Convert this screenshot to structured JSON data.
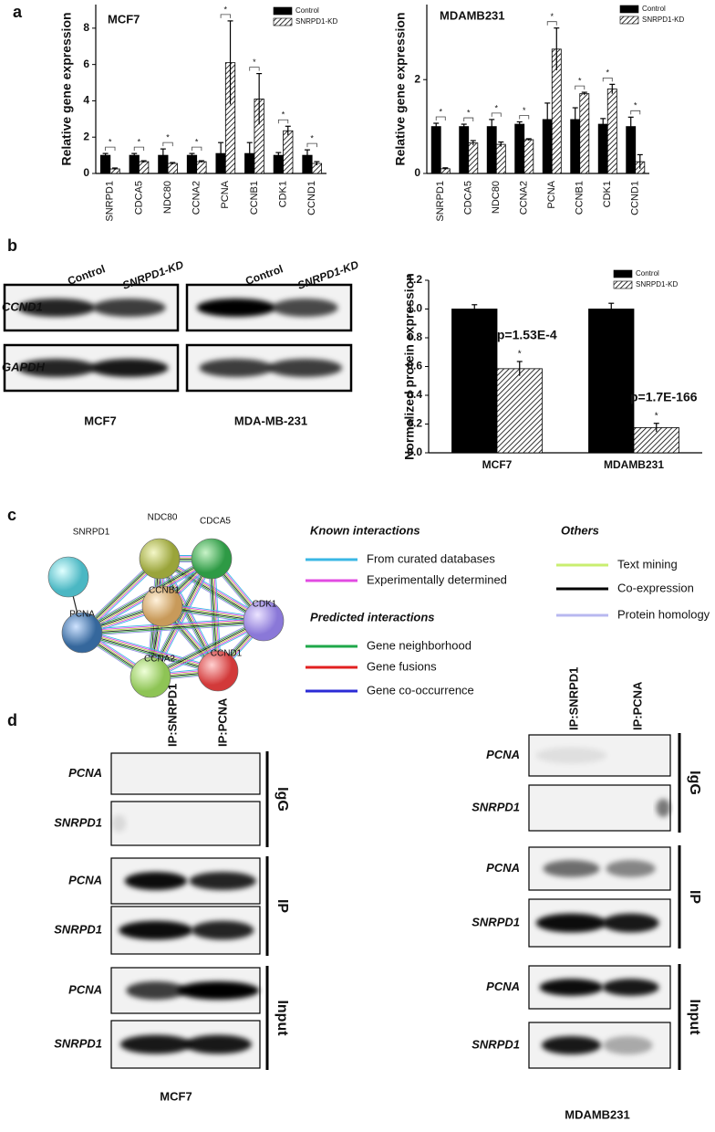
{
  "panel_labels": [
    "a",
    "b",
    "c",
    "d"
  ],
  "chart_data": [
    {
      "type": "bar",
      "title": "MCF7",
      "y_label": "Relative gene expression",
      "categories": [
        "SNRPD1",
        "CDCA5",
        "NDC80",
        "CCNA2",
        "PCNA",
        "CCNB1",
        "CDK1",
        "CCND1"
      ],
      "series": [
        {
          "name": "Control",
          "color": "#000000",
          "values": [
            1,
            1,
            1,
            1,
            1.1,
            1.1,
            1,
            1
          ],
          "errors": [
            0.1,
            0.1,
            0.35,
            0.1,
            0.6,
            0.6,
            0.15,
            0.3
          ]
        },
        {
          "name": "SNRPD1-KD",
          "color": "#000000",
          "fill": "hatch",
          "values": [
            0.25,
            0.65,
            0.55,
            0.65,
            6.1,
            4.1,
            2.35,
            0.55
          ],
          "errors": [
            0.05,
            0.05,
            0.05,
            0.05,
            2.3,
            1.4,
            0.25,
            0.1
          ]
        }
      ],
      "significance": [
        "*",
        "*",
        "*",
        "*",
        "*",
        "*",
        "*",
        "*"
      ],
      "ylim": [
        0,
        9.3
      ],
      "yticks": [
        0,
        2,
        4,
        6,
        8
      ],
      "legend": "upper right"
    },
    {
      "type": "bar",
      "title": "MDAMB231",
      "y_label": "Relative gene expression",
      "categories": [
        "SNRPD1",
        "CDCA5",
        "NDC80",
        "CCNA2",
        "PCNA",
        "CCNB1",
        "CDK1",
        "CCND1"
      ],
      "series": [
        {
          "name": "Control",
          "color": "#000000",
          "values": [
            1,
            1,
            1,
            1.05,
            1.15,
            1.15,
            1.05,
            1
          ],
          "errors": [
            0.07,
            0.05,
            0.15,
            0.05,
            0.35,
            0.25,
            0.12,
            0.2
          ]
        },
        {
          "name": "SNRPD1-KD",
          "color": "#000000",
          "fill": "hatch",
          "values": [
            0.1,
            0.65,
            0.62,
            0.72,
            2.65,
            1.7,
            1.8,
            0.25
          ],
          "errors": [
            0.02,
            0.05,
            0.05,
            0.02,
            0.45,
            0.03,
            0.1,
            0.15
          ]
        }
      ],
      "significance": [
        "*",
        "*",
        "*",
        "*",
        "*",
        "*",
        "*",
        "*"
      ],
      "ylim": [
        0,
        3.6
      ],
      "yticks": [
        0,
        2
      ],
      "legend": "upper right"
    },
    {
      "type": "bar",
      "y_label": "Normalized protein expression",
      "categories": [
        "MCF7",
        "MDAMB231"
      ],
      "series": [
        {
          "name": "Control",
          "color": "#000000",
          "values": [
            1,
            1
          ],
          "errors": [
            0.03,
            0.04
          ]
        },
        {
          "name": "SNRPD1-KD",
          "color": "#000000",
          "fill": "hatch",
          "values": [
            0.585,
            0.175
          ],
          "errors": [
            0.05,
            0.03
          ]
        }
      ],
      "annotations": [
        "p=1.53E-4",
        "p=1.7E-166"
      ],
      "significance": [
        "*",
        "*"
      ],
      "ylim": [
        0,
        1.2
      ],
      "yticks": [
        {
          "value": 0,
          "label": "0.0"
        },
        0.2,
        0.4,
        0.6,
        0.8,
        {
          "value": 1,
          "label": "1.0"
        },
        1.2
      ],
      "legend": "upper right"
    }
  ],
  "western_blot": {
    "columns": [
      "Control",
      "SNRPD1-KD",
      "Control",
      "SNRPD1-KD"
    ],
    "rows": [
      "CCND1",
      "GAPDH"
    ],
    "cell_lines": [
      "MCF7",
      "MDA-MB-231"
    ]
  },
  "network": {
    "nodes": [
      "SNRPD1",
      "NDC80",
      "CDCA5",
      "CCNB1",
      "PCNA",
      "CDK1",
      "CCNA2",
      "CCND1"
    ]
  },
  "network_legend": [
    {
      "title": "Known interactions",
      "items": [
        "From curated databases",
        "Experimentally determined"
      ]
    },
    {
      "title": "Predicted interactions",
      "items": [
        "Gene neighborhood",
        "Gene fusions",
        "Gene co-occurrence"
      ]
    },
    {
      "title": "Others",
      "items": [
        "Text mining",
        "Co-expression",
        "Protein homology"
      ]
    }
  ],
  "coip": [
    {
      "cell_line": "MCF7",
      "columns": [
        "IP:SNRPD1",
        "IP:PCNA"
      ],
      "rows": [
        "PCNA",
        "SNRPD1",
        "PCNA",
        "SNRPD1",
        "PCNA",
        "SNRPD1"
      ],
      "groups": [
        "IgG",
        "IP",
        "Input"
      ]
    },
    {
      "cell_line": "MDAMB231",
      "columns": [
        "IP:SNRPD1",
        "IP:PCNA"
      ],
      "rows": [
        "PCNA",
        "SNRPD1",
        "PCNA",
        "SNRPD1",
        "PCNA",
        "SNRPD1"
      ],
      "groups": [
        "IgG",
        "IP",
        "Input"
      ]
    }
  ]
}
